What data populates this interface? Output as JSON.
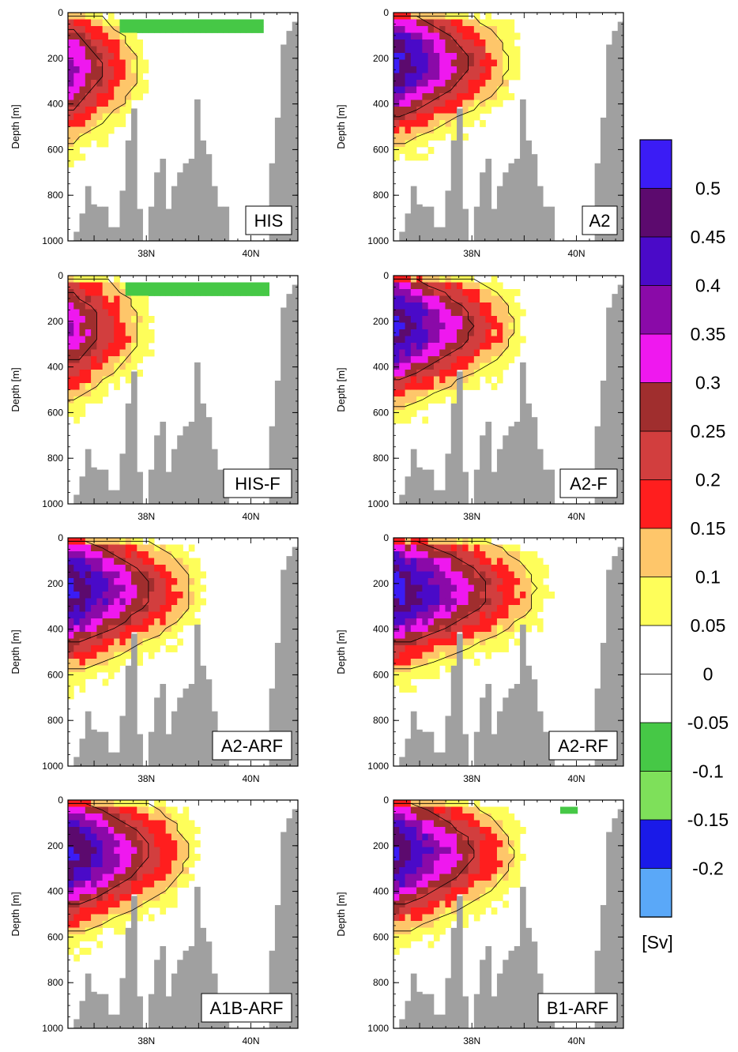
{
  "chart_data": {
    "type": "heatmap",
    "ylabel": "Depth [m]",
    "ylim": [
      0,
      1000
    ],
    "yticks": [
      0,
      200,
      400,
      600,
      800,
      1000
    ],
    "xlim": [
      36.5,
      40.9
    ],
    "xticks": [
      {
        "value": 38,
        "label": "38N"
      },
      {
        "value": 40,
        "label": "40N"
      }
    ],
    "panels": [
      {
        "label": "HIS",
        "max_value": 0.38,
        "peak_depth": 250,
        "extent_lat": 38.2,
        "neg_patch": {
          "lat": [
            37.5,
            40.2
          ],
          "depth": [
            20,
            90
          ],
          "value": -0.08
        }
      },
      {
        "label": "A2",
        "max_value": 0.52,
        "peak_depth": 220,
        "extent_lat": 39.1,
        "neg_patch": null
      },
      {
        "label": "HIS-F",
        "max_value": 0.36,
        "peak_depth": 230,
        "extent_lat": 38.3,
        "neg_patch": {
          "lat": [
            37.6,
            40.4
          ],
          "depth": [
            20,
            100
          ],
          "value": -0.08
        }
      },
      {
        "label": "A2-F",
        "max_value": 0.52,
        "peak_depth": 220,
        "extent_lat": 39.2,
        "neg_patch": null
      },
      {
        "label": "A2-ARF",
        "max_value": 0.53,
        "peak_depth": 230,
        "extent_lat": 39.3,
        "neg_patch": null
      },
      {
        "label": "A2-RF",
        "max_value": 0.53,
        "peak_depth": 230,
        "extent_lat": 39.7,
        "neg_patch": null
      },
      {
        "label": "A1B-ARF",
        "max_value": 0.53,
        "peak_depth": 230,
        "extent_lat": 39.2,
        "neg_patch": null
      },
      {
        "label": "B1-ARF",
        "max_value": 0.52,
        "peak_depth": 230,
        "extent_lat": 39.2,
        "neg_patch": {
          "lat": [
            39.7,
            40.0
          ],
          "depth": [
            20,
            70
          ],
          "value": -0.08
        }
      }
    ],
    "colorbar": {
      "unit": "[Sv]",
      "levels": [
        "0.5",
        "0.45",
        "0.4",
        "0.35",
        "0.3",
        "0.25",
        "0.2",
        "0.15",
        "0.1",
        "0.05",
        "0",
        "-0.05",
        "-0.1",
        "-0.15",
        "-0.2"
      ],
      "colors": [
        "#3b1cf5",
        "#5c0a6e",
        "#4a0ac8",
        "#8a0aa8",
        "#ef18ef",
        "#a02e2e",
        "#d23e3e",
        "#ff1e1e",
        "#fec66a",
        "#fefe5a",
        "#ffffff",
        "#ffffff",
        "#46c846",
        "#7ee05a",
        "#1a1ae8",
        "#5aa8f8"
      ]
    },
    "topography_color": "#a0a0a0"
  }
}
